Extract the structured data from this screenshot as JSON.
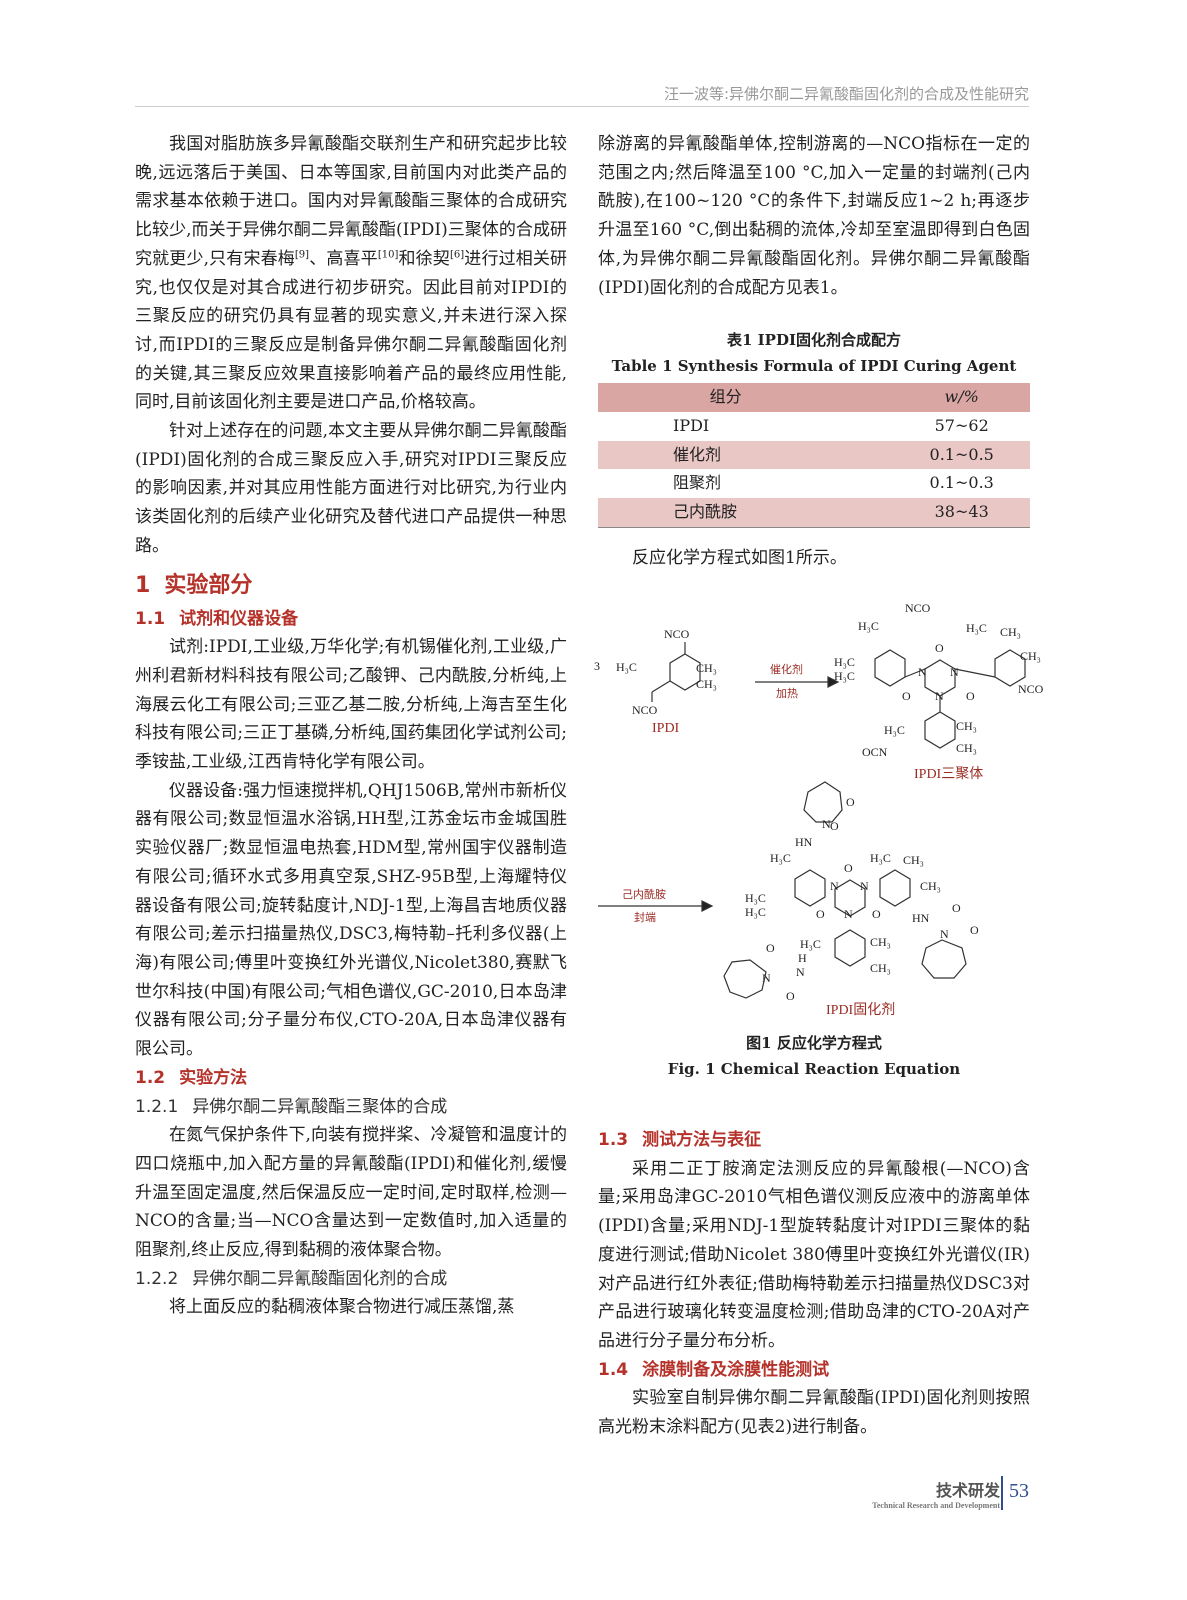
{
  "header": {
    "running_title": "汪一波等:异佛尔酮二异氰酸酯固化剂的合成及性能研究"
  },
  "left": {
    "p1": {
      "a": "我国对脂肪族多异氰酸酯交联剂生产和研究起步比较晚,远远落后于美国、日本等国家,目前国内对此类产品的需求基本依赖于进口。国内对异氰酸酯三聚体的合成研究比较少,而关于异佛尔酮二异氰酸酯(IPDI)三聚体的合成研究就更少,只有宋春梅",
      "r1": "[9]",
      "b": "、高喜平",
      "r2": "[10]",
      "c": "和徐契",
      "r3": "[6]",
      "d": "进行过相关研究,也仅仅是对其合成进行初步研究。因此目前对IPDI的三聚反应的研究仍具有显著的现实意义,并未进行深入探讨,而IPDI的三聚反应是制备异佛尔酮二异氰酸酯固化剂的关键,其三聚反应效果直接影响着产品的最终应用性能,同时,目前该固化剂主要是进口产品,价格较高。"
    },
    "p2": "针对上述存在的问题,本文主要从异佛尔酮二异氰酸酯(IPDI)固化剂的合成三聚反应入手,研究对IPDI三聚反应的影响因素,并对其应用性能方面进行对比研究,为行业内该类固化剂的后续产业化研究及替代进口产品提供一种思路。",
    "s1": {
      "num": "1",
      "title": "实验部分"
    },
    "s11": {
      "num": "1.1",
      "title": "试剂和仪器设备"
    },
    "p3": "试剂:IPDI,工业级,万华化学;有机锡催化剂,工业级,广州利君新材料科技有限公司;乙酸钾、己内酰胺,分析纯,上海展云化工有限公司;三亚乙基二胺,分析纯,上海吉至生化科技有限公司;三正丁基磷,分析纯,国药集团化学试剂公司;季铵盐,工业级,江西肯特化学有限公司。",
    "p4": "仪器设备:强力恒速搅拌机,QHJ1506B,常州市新析仪器有限公司;数显恒温水浴锅,HH型,江苏金坛市金城国胜实验仪器厂;数显恒温电热套,HDM型,常州国宇仪器制造有限公司;循环水式多用真空泵,SHZ-95B型,上海耀特仪器设备有限公司;旋转黏度计,NDJ-1型,上海昌吉地质仪器有限公司;差示扫描量热仪,DSC3,梅特勒–托利多仪器(上海)有限公司;傅里叶变换红外光谱仪,Nicolet380,赛默飞世尔科技(中国)有限公司;气相色谱仪,GC-2010,日本岛津仪器有限公司;分子量分布仪,CTO-20A,日本岛津仪器有限公司。",
    "s12": {
      "num": "1.2",
      "title": "实验方法"
    },
    "s121": {
      "num": "1.2.1",
      "title": "异佛尔酮二异氰酸酯三聚体的合成"
    },
    "p5": "在氮气保护条件下,向装有搅拌桨、冷凝管和温度计的四口烧瓶中,加入配方量的异氰酸酯(IPDI)和催化剂,缓慢升温至固定温度,然后保温反应一定时间,定时取样,检测—NCO的含量;当—NCO含量达到一定数值时,加入适量的阻聚剂,终止反应,得到黏稠的液体聚合物。",
    "s122": {
      "num": "1.2.2",
      "title": "异佛尔酮二异氰酸酯固化剂的合成"
    },
    "p6": "将上面反应的黏稠液体聚合物进行减压蒸馏,蒸"
  },
  "right": {
    "p1": "除游离的异氰酸酯单体,控制游离的—NCO指标在一定的范围之内;然后降温至100 °C,加入一定量的封端剂(己内酰胺),在100~120 °C的条件下,封端反应1~2 h;再逐步升温至160 °C,倒出黏稠的流体,冷却至室温即得到白色固体,为异佛尔酮二异氰酸酯固化剂。异佛尔酮二异氰酸酯(IPDI)固化剂的合成配方见表1。",
    "table1": {
      "caption_cn": "表1   IPDI固化剂合成配方",
      "caption_en": "Table 1    Synthesis Formula of IPDI Curing Agent",
      "headers": [
        "组分",
        "w/%"
      ],
      "rows": [
        [
          "IPDI",
          "57~62"
        ],
        [
          "催化剂",
          "0.1~0.5"
        ],
        [
          "阻聚剂",
          "0.1~0.3"
        ],
        [
          "己内酰胺",
          "38~43"
        ]
      ],
      "colors": {
        "header_bg": "#d9a6a3",
        "alt_row_bg": "#e9c7c5"
      }
    },
    "p2": "反应化学方程式如图1所示。",
    "figure1": {
      "labels": {
        "coef": "3",
        "nco": "NCO",
        "ocn": "OCN",
        "h3c": "H₃C",
        "ch3": "CH₃",
        "o": "O",
        "n": "N",
        "hn": "HN",
        "h": "H",
        "ipdi": "IPDI",
        "cat": "催化剂",
        "heat": "加热",
        "trimer": "IPDI三聚体",
        "capro": "己内酰胺",
        "endcap": "封端",
        "product": "IPDI固化剂"
      },
      "caption_cn": "图1   反应化学方程式",
      "caption_en": "Fig. 1    Chemical Reaction Equation"
    },
    "s13": {
      "num": "1.3",
      "title": "测试方法与表征"
    },
    "p3": "采用二正丁胺滴定法测反应的异氰酸根(—NCO)含量;采用岛津GC-2010气相色谱仪测反应液中的游离单体(IPDI)含量;采用NDJ-1型旋转黏度计对IPDI三聚体的黏度进行测试;借助Nicolet 380傅里叶变换红外光谱仪(IR)对产品进行红外表征;借助梅特勒差示扫描量热仪DSC3对产品进行玻璃化转变温度检测;借助岛津的CTO-20A对产品进行分子量分布分析。",
    "s14": {
      "num": "1.4",
      "title": "涂膜制备及涂膜性能测试"
    },
    "p4": "实验室自制异佛尔酮二异氰酸酯(IPDI)固化剂则按照高光粉末涂料配方(见表2)进行制备。"
  },
  "footer": {
    "section_cn": "技术研发",
    "section_en": "Technical Research and Development",
    "page": "53"
  },
  "colors": {
    "heading": "#b5322a",
    "accent_blue": "#2f4f8f"
  }
}
